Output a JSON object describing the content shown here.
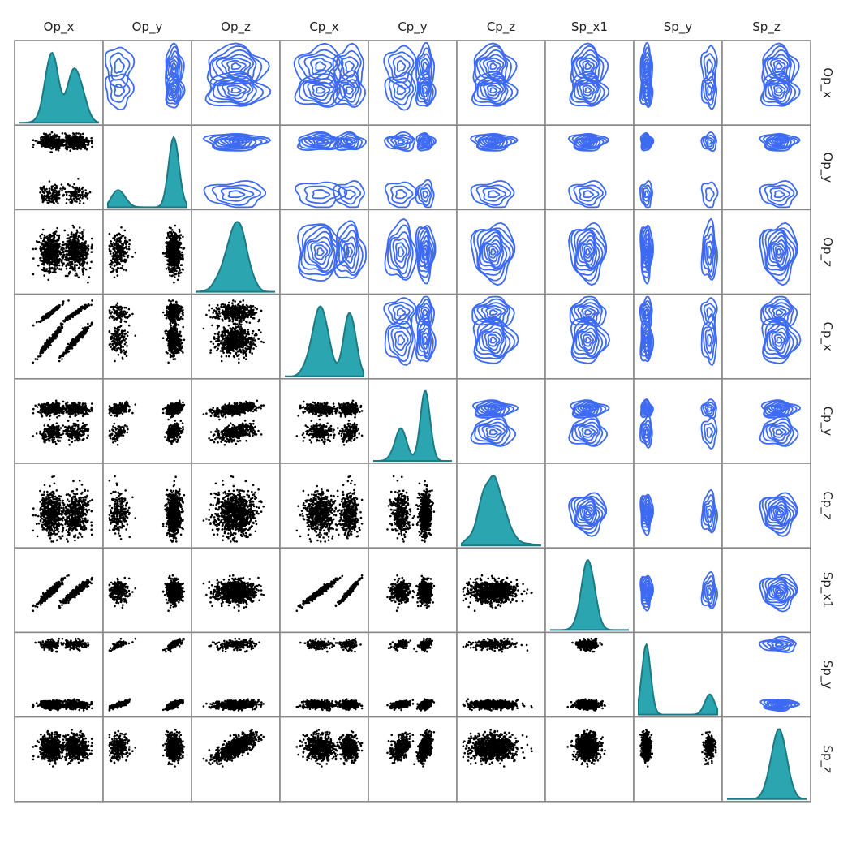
{
  "chart_data": {
    "type": "scatter-matrix",
    "variables": [
      "Op_x",
      "Op_y",
      "Op_z",
      "Cp_x",
      "Cp_y",
      "Cp_z",
      "Sp_x1",
      "Sp_y",
      "Sp_z"
    ],
    "layout": {
      "upper": "2d-density-contour",
      "diagonal": "density",
      "lower": "scatter"
    },
    "colors": {
      "density_fill": "#2BA5B0",
      "density_line": "#1C7A84",
      "contour": "#3D6AF2",
      "points": "#000000",
      "panel_border": "#888888"
    },
    "points_per_panel": 1000,
    "distributions": [
      {
        "var": "Op_x",
        "kind": "bimodal",
        "centers": [
          0.4,
          0.72
        ],
        "spread": [
          0.12,
          0.14
        ],
        "weights": [
          0.55,
          0.45
        ]
      },
      {
        "var": "Op_y",
        "kind": "bimodal",
        "centers": [
          0.14,
          0.84
        ],
        "spread": [
          0.09,
          0.06
        ],
        "weights": [
          0.2,
          0.8
        ]
      },
      {
        "var": "Op_z",
        "kind": "unimodal",
        "centers": [
          0.5
        ],
        "spread": [
          0.2
        ],
        "weights": [
          1
        ]
      },
      {
        "var": "Cp_x",
        "kind": "bimodal",
        "centers": [
          0.45,
          0.82
        ],
        "spread": [
          0.16,
          0.1
        ],
        "weights": [
          0.6,
          0.4
        ]
      },
      {
        "var": "Cp_y",
        "kind": "bimodal",
        "centers": [
          0.35,
          0.66
        ],
        "spread": [
          0.1,
          0.06
        ],
        "weights": [
          0.35,
          0.65
        ]
      },
      {
        "var": "Cp_z",
        "kind": "unimodal",
        "centers": [
          0.4
        ],
        "spread": [
          0.14
        ],
        "weights": [
          1
        ]
      },
      {
        "var": "Sp_x1",
        "kind": "unimodal",
        "centers": [
          0.48
        ],
        "spread": [
          0.12
        ],
        "weights": [
          1
        ]
      },
      {
        "var": "Sp_y",
        "kind": "bimodal",
        "centers": [
          0.1,
          0.9
        ],
        "spread": [
          0.04,
          0.05
        ],
        "weights": [
          0.75,
          0.25
        ]
      },
      {
        "var": "Sp_z",
        "kind": "unimodal",
        "centers": [
          0.66
        ],
        "spread": [
          0.12
        ],
        "weights": [
          1
        ]
      }
    ],
    "pair_correlations": [
      {
        "pair": [
          "Op_x",
          "Cp_x"
        ],
        "r": 0.6
      },
      {
        "pair": [
          "Op_x",
          "Sp_x1"
        ],
        "r": 0.65
      },
      {
        "pair": [
          "Cp_x",
          "Sp_x1"
        ],
        "r": 0.6
      },
      {
        "pair": [
          "Op_z",
          "Sp_z"
        ],
        "r": 0.9
      },
      {
        "pair": [
          "Op_y",
          "Sp_y"
        ],
        "r": 0.92
      },
      {
        "pair": [
          "Op_z",
          "Cp_y"
        ],
        "r": 0.5
      },
      {
        "pair": [
          "Cp_y",
          "Sp_y"
        ],
        "r": 0.45
      }
    ]
  }
}
